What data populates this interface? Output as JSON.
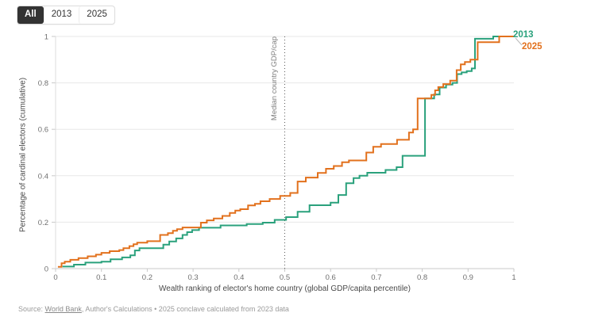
{
  "controls": {
    "buttons": [
      {
        "label": "All",
        "selected": true
      },
      {
        "label": "2013",
        "selected": false
      },
      {
        "label": "2025",
        "selected": false
      }
    ]
  },
  "chart": {
    "y_axis_title": "Percentage of cardinal electors (cumulative)",
    "x_axis_title": "Wealth ranking of elector's home country (global GDP/capita percentile)",
    "median_label": "Median country GDP/cap",
    "legend": {
      "label_2013": "2013",
      "label_2025": "2025"
    }
  },
  "source": {
    "prefix": "Source: ",
    "link": "World Bank",
    "rest": ", Author's Calculations • 2025 conclave calculated from 2023 data"
  },
  "colors": {
    "green_2013": "#2aa17c",
    "orange_2025": "#e2711d",
    "gridline": "#e7e7e7",
    "axis": "#c9c9c9",
    "tick_text": "#6f6f6f",
    "median_line": "#5a5a5a",
    "leader_line": "#b8b8b8",
    "button_selected_bg": "#333333"
  },
  "chart_data": {
    "type": "line",
    "subtype": "step-cumulative-distribution",
    "xlabel": "Wealth ranking of elector's home country (global GDP/capita percentile)",
    "ylabel": "Percentage of cardinal electors (cumulative)",
    "xlim": [
      0,
      1
    ],
    "ylim": [
      0,
      1
    ],
    "grid": "horizontal",
    "legend_position": "end-of-line",
    "x_ticks": [
      {
        "v": 0,
        "t": "0"
      },
      {
        "v": 0.1,
        "t": "0.1"
      },
      {
        "v": 0.2,
        "t": "0.2"
      },
      {
        "v": 0.3,
        "t": "0.3"
      },
      {
        "v": 0.4,
        "t": "0.4"
      },
      {
        "v": 0.5,
        "t": "0.5"
      },
      {
        "v": 0.6,
        "t": "0.6"
      },
      {
        "v": 0.7,
        "t": "0.7"
      },
      {
        "v": 0.8,
        "t": "0.8"
      },
      {
        "v": 0.9,
        "t": "0.9"
      },
      {
        "v": 1,
        "t": "1"
      }
    ],
    "y_ticks": [
      {
        "v": 0,
        "t": "0"
      },
      {
        "v": 0.2,
        "t": "0.2"
      },
      {
        "v": 0.4,
        "t": "0.4"
      },
      {
        "v": 0.6,
        "t": "0.6"
      },
      {
        "v": 0.8,
        "t": "0.8"
      },
      {
        "v": 1,
        "t": "1"
      }
    ],
    "annotations": [
      {
        "type": "vline",
        "x": 0.5,
        "style": "dotted",
        "label": "Median country GDP/cap"
      }
    ],
    "series": [
      {
        "name": "2013",
        "color": "#2aa17c",
        "points": [
          [
            0.015,
            0.009
          ],
          [
            0.04,
            0.017
          ],
          [
            0.065,
            0.026
          ],
          [
            0.1,
            0.03
          ],
          [
            0.12,
            0.04
          ],
          [
            0.145,
            0.048
          ],
          [
            0.163,
            0.057
          ],
          [
            0.173,
            0.078
          ],
          [
            0.183,
            0.088
          ],
          [
            0.235,
            0.103
          ],
          [
            0.248,
            0.117
          ],
          [
            0.263,
            0.13
          ],
          [
            0.277,
            0.145
          ],
          [
            0.287,
            0.157
          ],
          [
            0.298,
            0.166
          ],
          [
            0.313,
            0.176
          ],
          [
            0.36,
            0.186
          ],
          [
            0.417,
            0.192
          ],
          [
            0.452,
            0.198
          ],
          [
            0.478,
            0.21
          ],
          [
            0.503,
            0.222
          ],
          [
            0.528,
            0.245
          ],
          [
            0.554,
            0.273
          ],
          [
            0.6,
            0.284
          ],
          [
            0.617,
            0.317
          ],
          [
            0.634,
            0.368
          ],
          [
            0.65,
            0.39
          ],
          [
            0.663,
            0.4
          ],
          [
            0.68,
            0.413
          ],
          [
            0.72,
            0.425
          ],
          [
            0.744,
            0.437
          ],
          [
            0.757,
            0.486
          ],
          [
            0.806,
            0.733
          ],
          [
            0.826,
            0.75
          ],
          [
            0.838,
            0.78
          ],
          [
            0.852,
            0.793
          ],
          [
            0.866,
            0.8
          ],
          [
            0.876,
            0.838
          ],
          [
            0.886,
            0.845
          ],
          [
            0.897,
            0.851
          ],
          [
            0.908,
            0.862
          ],
          [
            0.915,
            0.99
          ],
          [
            0.955,
            1.0
          ],
          [
            1.0,
            1.0
          ]
        ]
      },
      {
        "name": "2025",
        "color": "#e2711d",
        "points": [
          [
            0.005,
            0.008
          ],
          [
            0.013,
            0.023
          ],
          [
            0.02,
            0.03
          ],
          [
            0.032,
            0.038
          ],
          [
            0.05,
            0.045
          ],
          [
            0.07,
            0.053
          ],
          [
            0.088,
            0.06
          ],
          [
            0.1,
            0.068
          ],
          [
            0.118,
            0.075
          ],
          [
            0.139,
            0.08
          ],
          [
            0.148,
            0.088
          ],
          [
            0.161,
            0.097
          ],
          [
            0.17,
            0.105
          ],
          [
            0.178,
            0.112
          ],
          [
            0.2,
            0.118
          ],
          [
            0.228,
            0.145
          ],
          [
            0.245,
            0.153
          ],
          [
            0.256,
            0.163
          ],
          [
            0.265,
            0.17
          ],
          [
            0.277,
            0.177
          ],
          [
            0.317,
            0.198
          ],
          [
            0.33,
            0.208
          ],
          [
            0.345,
            0.216
          ],
          [
            0.364,
            0.227
          ],
          [
            0.38,
            0.24
          ],
          [
            0.392,
            0.25
          ],
          [
            0.403,
            0.256
          ],
          [
            0.42,
            0.272
          ],
          [
            0.435,
            0.279
          ],
          [
            0.447,
            0.29
          ],
          [
            0.467,
            0.3
          ],
          [
            0.49,
            0.313
          ],
          [
            0.512,
            0.326
          ],
          [
            0.528,
            0.375
          ],
          [
            0.546,
            0.392
          ],
          [
            0.572,
            0.412
          ],
          [
            0.59,
            0.43
          ],
          [
            0.607,
            0.442
          ],
          [
            0.625,
            0.458
          ],
          [
            0.64,
            0.466
          ],
          [
            0.678,
            0.5
          ],
          [
            0.693,
            0.525
          ],
          [
            0.71,
            0.537
          ],
          [
            0.745,
            0.555
          ],
          [
            0.771,
            0.586
          ],
          [
            0.78,
            0.6
          ],
          [
            0.79,
            0.733
          ],
          [
            0.82,
            0.748
          ],
          [
            0.828,
            0.768
          ],
          [
            0.835,
            0.782
          ],
          [
            0.846,
            0.795
          ],
          [
            0.861,
            0.81
          ],
          [
            0.875,
            0.855
          ],
          [
            0.884,
            0.88
          ],
          [
            0.893,
            0.89
          ],
          [
            0.905,
            0.9
          ],
          [
            0.921,
            0.975
          ],
          [
            0.968,
            1.0
          ],
          [
            1.0,
            1.0
          ]
        ]
      }
    ]
  }
}
